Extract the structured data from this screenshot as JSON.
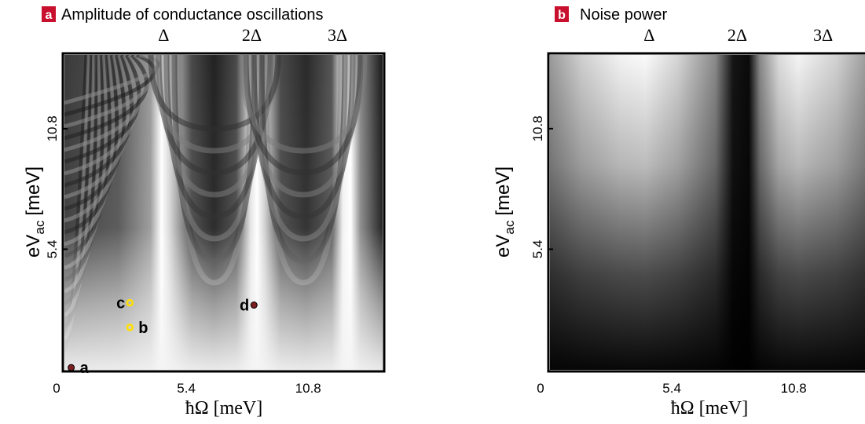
{
  "colors": {
    "badge": "#c8102e",
    "badge_text": "#ffffff",
    "point_dark": "#7a1f1f",
    "point_yellow": "#ffe000",
    "frame": "#000000"
  },
  "chart_data": [
    {
      "type": "heatmap",
      "panel_letter": "a",
      "title": "Amplitude of conductance oscillations",
      "xlabel": "ħΩ [meV]",
      "ylabel_base": "eV",
      "ylabel_sub": "ac",
      "ylabel_unit": "[meV]",
      "x_ticks": [
        {
          "value": 0,
          "label": "0"
        },
        {
          "value": 5.4,
          "label": "5.4"
        },
        {
          "value": 10.8,
          "label": "10.8"
        }
      ],
      "y_ticks": [
        {
          "value": 5.4,
          "label": "5.4"
        },
        {
          "value": 10.8,
          "label": "10.8"
        }
      ],
      "top_ticks": [
        {
          "value": 4.4,
          "label": "Δ"
        },
        {
          "value": 8.3,
          "label": "2Δ"
        },
        {
          "value": 12.1,
          "label": "3Δ"
        }
      ],
      "xlim": [
        0,
        14.1
      ],
      "ylim": [
        0,
        14.1
      ],
      "grayscale": true,
      "points": [
        {
          "label": "a",
          "x": 0.3,
          "y": 0.1,
          "color": "dark"
        },
        {
          "label": "b",
          "x": 2.9,
          "y": 1.9,
          "color": "yellow"
        },
        {
          "label": "c",
          "x": 2.9,
          "y": 3.0,
          "color": "yellow"
        },
        {
          "label": "d",
          "x": 8.4,
          "y": 2.9,
          "color": "dark"
        }
      ]
    },
    {
      "type": "heatmap",
      "panel_letter": "b",
      "title": "Noise power",
      "xlabel": "ħΩ [meV]",
      "ylabel_base": "eV",
      "ylabel_sub": "ac",
      "ylabel_unit": "[meV]",
      "x_ticks": [
        {
          "value": 0,
          "label": "0"
        },
        {
          "value": 5.4,
          "label": "5.4"
        },
        {
          "value": 10.8,
          "label": "10.8"
        }
      ],
      "y_ticks": [
        {
          "value": 5.4,
          "label": "5.4"
        },
        {
          "value": 10.8,
          "label": "10.8"
        }
      ],
      "top_ticks": [
        {
          "value": 4.4,
          "label": "Δ"
        },
        {
          "value": 8.3,
          "label": "2Δ"
        },
        {
          "value": 12.1,
          "label": "3Δ"
        }
      ],
      "xlim": [
        0,
        14.1
      ],
      "ylim": [
        0,
        14.1
      ],
      "grayscale": true,
      "points": []
    }
  ]
}
